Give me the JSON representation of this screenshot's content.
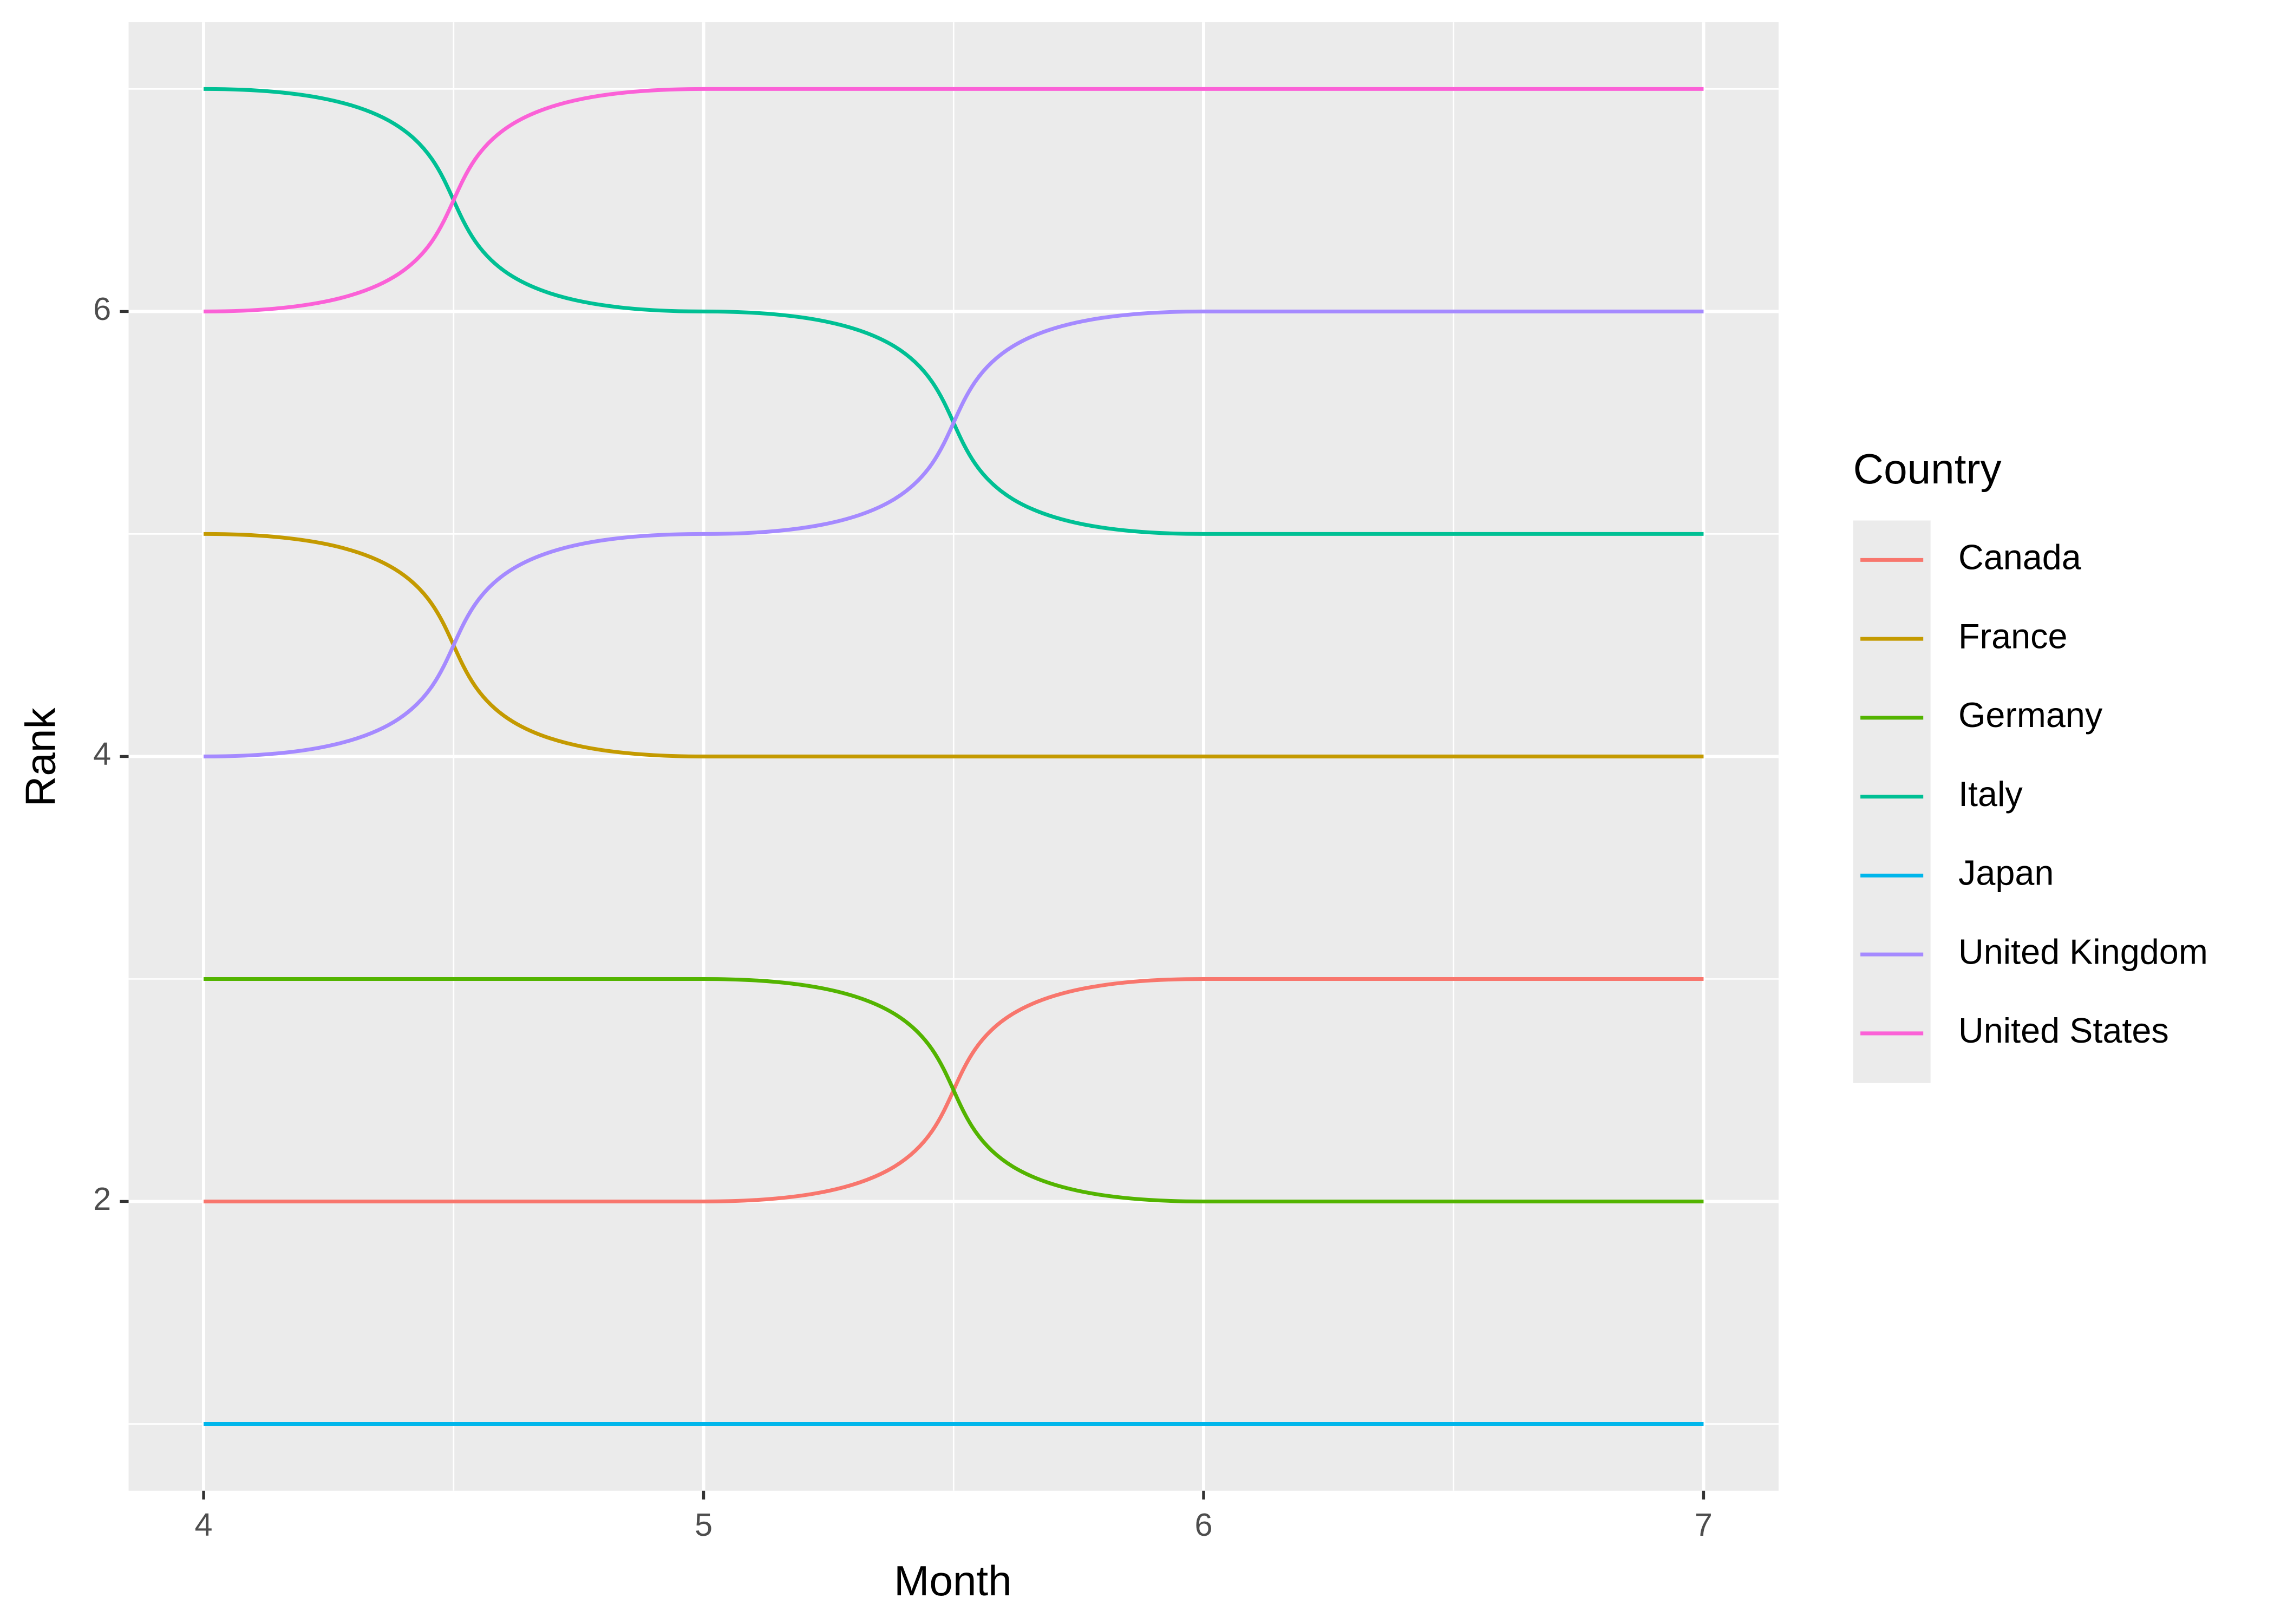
{
  "chart_data": {
    "type": "line",
    "x_label": "Month",
    "y_label": "Rank",
    "x": [
      4,
      5,
      6,
      7
    ],
    "series": [
      {
        "name": "Canada",
        "color": "#F8766D",
        "values": [
          2,
          2,
          3,
          3
        ]
      },
      {
        "name": "France",
        "color": "#C49A00",
        "values": [
          5,
          4,
          4,
          4
        ]
      },
      {
        "name": "Germany",
        "color": "#53B400",
        "values": [
          3,
          3,
          2,
          2
        ]
      },
      {
        "name": "Italy",
        "color": "#00C094",
        "values": [
          7,
          6,
          5,
          5
        ]
      },
      {
        "name": "Japan",
        "color": "#00B6EB",
        "values": [
          1,
          1,
          1,
          1
        ]
      },
      {
        "name": "United Kingdom",
        "color": "#A58AFF",
        "values": [
          4,
          5,
          6,
          6
        ]
      },
      {
        "name": "United States",
        "color": "#FB61D7",
        "values": [
          6,
          7,
          7,
          7
        ]
      }
    ],
    "xlim": [
      3.85,
      7.15
    ],
    "xticks": [
      4,
      5,
      6,
      7
    ],
    "ylim": [
      0.7,
      7.3
    ],
    "yticks": [
      2,
      4,
      6
    ],
    "grid": true,
    "legend_title": "Country",
    "legend_position": "right"
  }
}
